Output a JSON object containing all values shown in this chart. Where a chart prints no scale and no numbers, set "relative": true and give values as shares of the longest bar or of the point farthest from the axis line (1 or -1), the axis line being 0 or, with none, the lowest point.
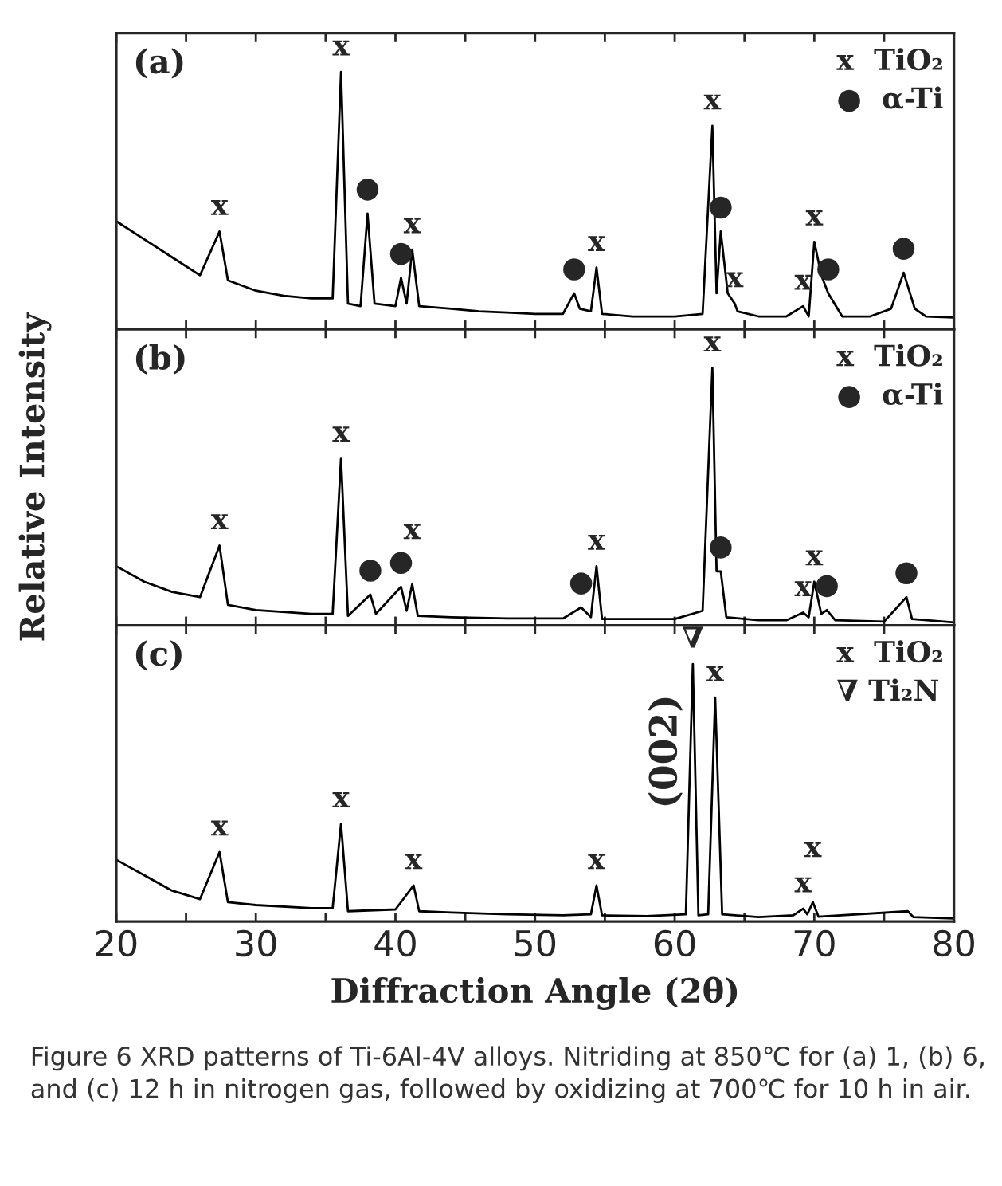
{
  "chart_data": [
    {
      "type": "line",
      "relative": true,
      "title": "(a)",
      "xlim": [
        20,
        80
      ],
      "xticks": [
        20,
        {
          "value": 25,
          "label": null
        },
        30,
        {
          "value": 35,
          "label": null
        },
        40,
        {
          "value": 45,
          "label": null
        },
        50,
        {
          "value": 55,
          "label": null
        },
        60,
        {
          "value": 65,
          "label": null
        },
        70,
        {
          "value": 75,
          "label": null
        },
        80
      ],
      "tick_labels": false,
      "series": [
        {
          "color": "#000000",
          "x": [
            20,
            22,
            24,
            26,
            27.4,
            28,
            30,
            32,
            34,
            35.5,
            36.1,
            36.6,
            37.5,
            38.0,
            38.5,
            40,
            40.4,
            40.8,
            41.2,
            41.7,
            44,
            46,
            48,
            50,
            52,
            52.8,
            53.2,
            54.0,
            54.4,
            54.8,
            57,
            60,
            62,
            62.7,
            63.0,
            63.3,
            63.8,
            64.3,
            64.5,
            66,
            68,
            69.2,
            69.6,
            70.0,
            70.5,
            71.0,
            72,
            74,
            75.5,
            76.4,
            77.2,
            78,
            80
          ],
          "values": [
            0.42,
            0.35,
            0.28,
            0.21,
            0.38,
            0.19,
            0.15,
            0.13,
            0.12,
            0.12,
            1.0,
            0.1,
            0.09,
            0.45,
            0.1,
            0.09,
            0.2,
            0.1,
            0.31,
            0.09,
            0.08,
            0.07,
            0.065,
            0.06,
            0.06,
            0.14,
            0.08,
            0.07,
            0.24,
            0.06,
            0.05,
            0.05,
            0.06,
            0.79,
            0.14,
            0.38,
            0.14,
            0.1,
            0.07,
            0.05,
            0.05,
            0.09,
            0.05,
            0.34,
            0.21,
            0.14,
            0.05,
            0.05,
            0.08,
            0.22,
            0.08,
            0.05,
            0.046
          ]
        }
      ],
      "annotations": [
        "x  TiO₂",
        "●  α-Ti",
        {
          "text": "x",
          "x": 27.4,
          "y": 0.38
        },
        {
          "text": "x",
          "x": 36.1,
          "y": 1.0
        },
        {
          "text": "●",
          "x": 38.0,
          "y": 0.45
        },
        {
          "text": "●",
          "x": 40.4,
          "y": 0.2
        },
        {
          "text": "x",
          "x": 41.2,
          "y": 0.31
        },
        {
          "text": "●",
          "x": 52.8,
          "y": 0.14
        },
        {
          "text": "x",
          "x": 54.4,
          "y": 0.24
        },
        {
          "text": "x",
          "x": 62.7,
          "y": 0.79
        },
        {
          "text": "●",
          "x": 63.3,
          "y": 0.38
        },
        {
          "text": "x",
          "x": 64.3,
          "y": 0.1
        },
        {
          "text": "x",
          "x": 69.2,
          "y": 0.09
        },
        {
          "text": "x",
          "x": 70.0,
          "y": 0.34
        },
        {
          "text": "●",
          "x": 71.0,
          "y": 0.14
        },
        {
          "text": "●",
          "x": 76.4,
          "y": 0.22
        }
      ]
    },
    {
      "type": "line",
      "relative": true,
      "title": "(b)",
      "ylabel": "Relative Intensity",
      "xlim": [
        20,
        80
      ],
      "xticks": [
        20,
        {
          "value": 25,
          "label": null
        },
        30,
        {
          "value": 35,
          "label": null
        },
        40,
        {
          "value": 45,
          "label": null
        },
        50,
        {
          "value": 55,
          "label": null
        },
        60,
        {
          "value": 65,
          "label": null
        },
        70,
        {
          "value": 75,
          "label": null
        },
        80
      ],
      "tick_labels": false,
      "series": [
        {
          "color": "#000000",
          "x": [
            20,
            22,
            24,
            26,
            27.4,
            28,
            30,
            34,
            35.5,
            36.1,
            36.6,
            38.2,
            38.6,
            40.4,
            40.8,
            41.2,
            41.6,
            44,
            48,
            52,
            53.3,
            54.0,
            54.4,
            54.8,
            60,
            62,
            62.7,
            63.0,
            63.3,
            63.7,
            66,
            68,
            69.2,
            69.6,
            70.0,
            70.5,
            70.9,
            71.5,
            75,
            76.6,
            77.0,
            80
          ],
          "values": [
            0.23,
            0.17,
            0.13,
            0.11,
            0.31,
            0.08,
            0.06,
            0.045,
            0.045,
            0.65,
            0.037,
            0.12,
            0.045,
            0.15,
            0.057,
            0.16,
            0.037,
            0.032,
            0.027,
            0.027,
            0.07,
            0.032,
            0.23,
            0.025,
            0.025,
            0.057,
            1.0,
            0.21,
            0.21,
            0.032,
            0.02,
            0.02,
            0.05,
            0.032,
            0.17,
            0.045,
            0.06,
            0.02,
            0.015,
            0.11,
            0.025,
            0.012
          ]
        }
      ],
      "annotations": [
        "x  TiO₂",
        "●  α-Ti",
        {
          "text": "x",
          "x": 27.4,
          "y": 0.31
        },
        {
          "text": "x",
          "x": 36.1,
          "y": 0.65
        },
        {
          "text": "●",
          "x": 38.2,
          "y": 0.12
        },
        {
          "text": "●",
          "x": 40.4,
          "y": 0.15
        },
        {
          "text": "x",
          "x": 41.2,
          "y": 0.16
        },
        {
          "text": "●",
          "x": 53.3,
          "y": 0.07
        },
        {
          "text": "x",
          "x": 54.4,
          "y": 0.23
        },
        {
          "text": "x",
          "x": 62.7,
          "y": 1.0
        },
        {
          "text": "●",
          "x": 63.3,
          "y": 0.21
        },
        {
          "text": "x",
          "x": 69.2,
          "y": 0.05
        },
        {
          "text": "x",
          "x": 70.0,
          "y": 0.17
        },
        {
          "text": "●",
          "x": 70.9,
          "y": 0.06
        },
        {
          "text": "●",
          "x": 76.6,
          "y": 0.11
        }
      ]
    },
    {
      "type": "line",
      "relative": true,
      "title": "(c)",
      "xlabel": "Diffraction Angle (2θ)",
      "xlim": [
        20,
        80
      ],
      "xticks": [
        20,
        {
          "value": 25,
          "label": null
        },
        30,
        {
          "value": 35,
          "label": null
        },
        40,
        {
          "value": 45,
          "label": null
        },
        50,
        {
          "value": 55,
          "label": null
        },
        60,
        {
          "value": 65,
          "label": null
        },
        70,
        {
          "value": 75,
          "label": null
        },
        80
      ],
      "tick_labels": "x",
      "series": [
        {
          "color": "#000000",
          "x": [
            20,
            22,
            24,
            26,
            27.4,
            28,
            30,
            34,
            35.5,
            36.1,
            36.6,
            40,
            41.3,
            41.7,
            44,
            48,
            52,
            54.0,
            54.4,
            54.8,
            58,
            60.8,
            61.3,
            61.7,
            62.4,
            62.9,
            63.4,
            66,
            68.5,
            69.2,
            69.5,
            69.9,
            70.3,
            76.7,
            77.1,
            80
          ],
          "values": [
            0.24,
            0.18,
            0.12,
            0.087,
            0.27,
            0.075,
            0.064,
            0.052,
            0.052,
            0.38,
            0.04,
            0.047,
            0.14,
            0.04,
            0.035,
            0.028,
            0.024,
            0.028,
            0.14,
            0.024,
            0.021,
            0.028,
            1.0,
            0.024,
            0.028,
            0.87,
            0.028,
            0.017,
            0.024,
            0.05,
            0.028,
            0.075,
            0.019,
            0.04,
            0.017,
            0.012
          ]
        }
      ],
      "annotations": [
        "x  TiO₂",
        "∇ Ti₂N",
        {
          "text": "x",
          "x": 27.4,
          "y": 0.27
        },
        {
          "text": "x",
          "x": 36.1,
          "y": 0.38
        },
        {
          "text": "x",
          "x": 41.3,
          "y": 0.14
        },
        {
          "text": "x",
          "x": 54.4,
          "y": 0.14
        },
        {
          "text": "∇",
          "x": 61.3,
          "y": 1.0
        },
        {
          "text": "(002)",
          "x": 61.3,
          "y": 0.66
        },
        {
          "text": "x",
          "x": 62.9,
          "y": 0.87
        },
        {
          "text": "x",
          "x": 69.2,
          "y": 0.05
        },
        {
          "text": "x",
          "x": 69.9,
          "y": 0.075
        },
        "Figure 6 XRD patterns of Ti-6Al-4V alloys. Nitriding at 850℃ for (a) 1, (b) 6, and (c) 12 h in nitrogen gas, followed by oxidizing at 700℃ for 10 h in air."
      ]
    }
  ]
}
